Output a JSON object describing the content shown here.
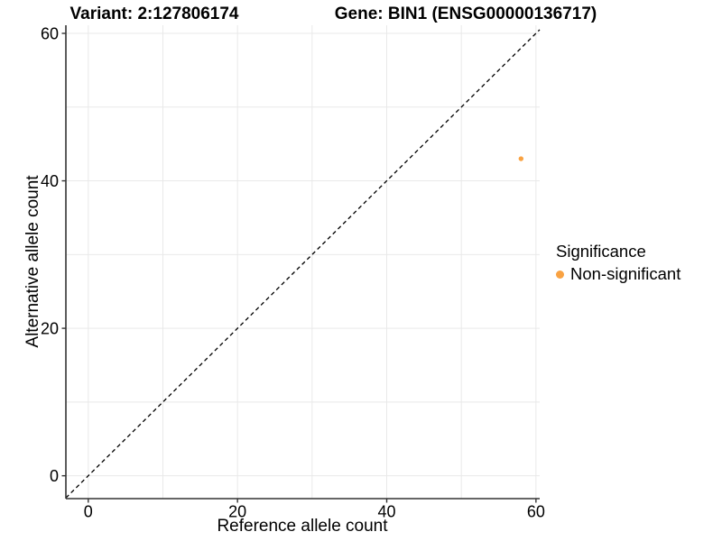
{
  "titles": {
    "variant": "Variant: 2:127806174",
    "gene": "Gene: BIN1 (ENSG00000136717)"
  },
  "chart_data": {
    "type": "scatter",
    "title": "Variant: 2:127806174   Gene: BIN1 (ENSG00000136717)",
    "xlabel": "Reference allele count",
    "ylabel": "Alternative allele count",
    "xlim": [
      -3,
      60.5
    ],
    "ylim": [
      -3.1,
      61.1
    ],
    "x_ticks": [
      0,
      20,
      40,
      60
    ],
    "y_ticks": [
      0,
      20,
      40,
      60
    ],
    "gridline_values": [
      0,
      10,
      20,
      30,
      40,
      50,
      60
    ],
    "grid": true,
    "identity_line": {
      "style": "dashed",
      "equation": "y = x"
    },
    "points": [
      {
        "x": 58,
        "y": 43,
        "series": "Non-significant"
      }
    ],
    "legend": {
      "title": "Significance",
      "position": "right",
      "entries": [
        {
          "label": "Non-significant",
          "color": "#F9A242"
        }
      ]
    },
    "colors": {
      "point": "#F9A242",
      "grid": "#E9E9E9",
      "axis": "#333333",
      "identity_line": "#000000",
      "text": "#000000"
    }
  }
}
